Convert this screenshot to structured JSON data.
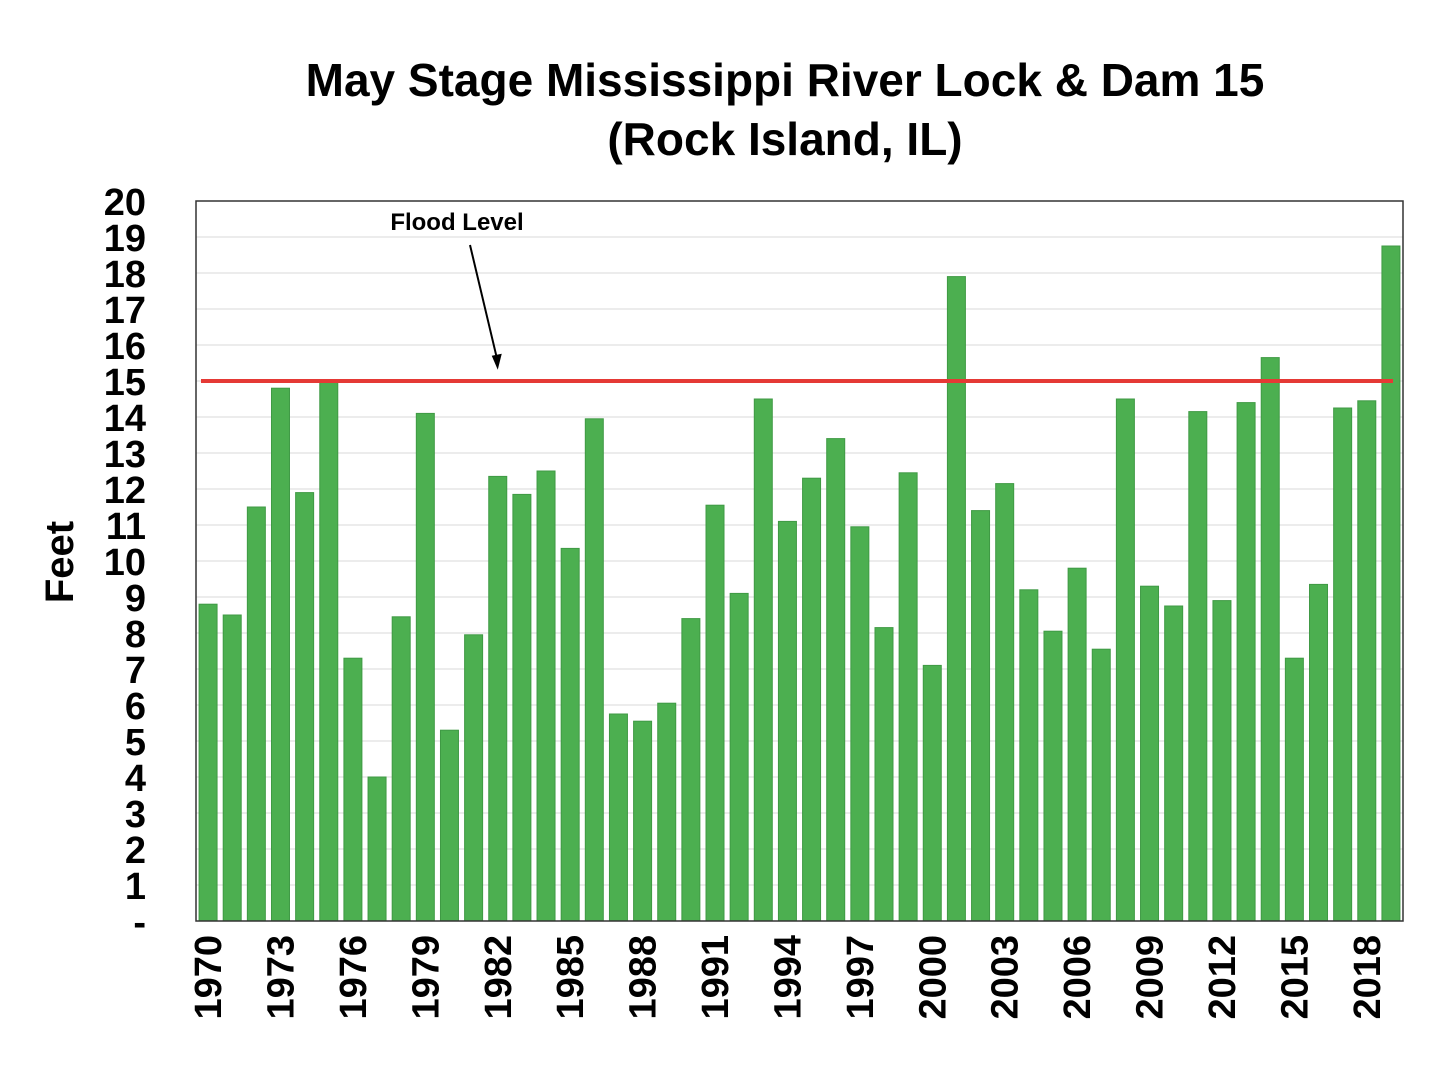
{
  "chart_data": {
    "type": "bar",
    "title": "May Stage Mississippi River Lock & Dam 15",
    "subtitle": "(Rock Island, IL)",
    "xlabel": "",
    "ylabel": "Feet",
    "ylim": [
      0,
      20
    ],
    "y_ticks": [
      "-",
      "1",
      "2",
      "3",
      "4",
      "5",
      "6",
      "7",
      "8",
      "9",
      "10",
      "11",
      "12",
      "13",
      "14",
      "15",
      "16",
      "17",
      "18",
      "19",
      "20"
    ],
    "x_tick_labels": [
      "1970",
      "1973",
      "1976",
      "1979",
      "1982",
      "1985",
      "1988",
      "1991",
      "1994",
      "1997",
      "2000",
      "2003",
      "2006",
      "2009",
      "2012",
      "2015",
      "2018"
    ],
    "categories": [
      1970,
      1971,
      1972,
      1973,
      1974,
      1975,
      1976,
      1977,
      1978,
      1979,
      1980,
      1981,
      1982,
      1983,
      1984,
      1985,
      1986,
      1987,
      1988,
      1989,
      1990,
      1991,
      1992,
      1993,
      1994,
      1995,
      1996,
      1997,
      1998,
      1999,
      2000,
      2001,
      2002,
      2003,
      2004,
      2005,
      2006,
      2007,
      2008,
      2009,
      2010,
      2011,
      2012,
      2013,
      2014,
      2015,
      2016,
      2017,
      2018,
      2019
    ],
    "values": [
      8.8,
      8.5,
      11.5,
      14.8,
      11.9,
      15.0,
      7.3,
      4.0,
      8.45,
      14.1,
      5.3,
      7.95,
      12.35,
      11.85,
      12.5,
      10.35,
      13.95,
      5.75,
      5.55,
      6.05,
      8.4,
      11.55,
      9.1,
      14.5,
      11.1,
      12.3,
      13.4,
      10.95,
      8.15,
      12.45,
      7.1,
      17.9,
      11.4,
      12.15,
      9.2,
      8.05,
      9.8,
      7.55,
      14.5,
      9.3,
      8.75,
      14.15,
      8.9,
      14.4,
      15.65,
      7.3,
      9.35,
      14.25,
      14.45,
      18.75
    ],
    "bar_color": "#4caf50",
    "grid": true,
    "reference_line": {
      "value": 15,
      "color": "#e53935"
    },
    "annotation": {
      "text": "Flood Level",
      "arrow_to": {
        "x": 1982,
        "y": 15.2
      }
    }
  }
}
